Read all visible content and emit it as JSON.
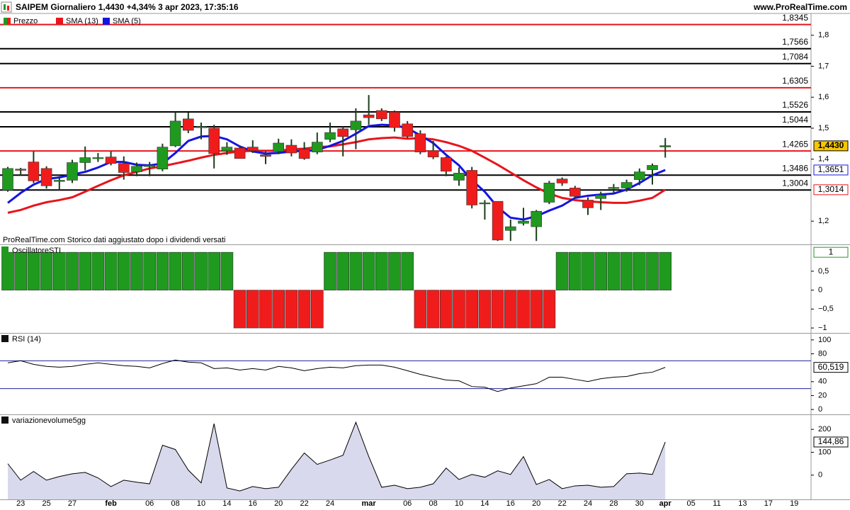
{
  "chart_data": [
    {
      "type": "candlestick",
      "title": "SAIPEM Giornaliero 1,4430 +4,34% 3 apr 2023, 17:35:16",
      "source": "www.ProRealTime.com",
      "note": "ProRealTime.com Storico dati aggiustato dopo i dividendi versati",
      "categories": [
        null,
        "23",
        null,
        "25",
        null,
        "27",
        null,
        null,
        "feb",
        null,
        null,
        "06",
        null,
        "08",
        null,
        "10",
        null,
        "14",
        null,
        "16",
        null,
        "20",
        null,
        "22",
        null,
        "24",
        null,
        null,
        "mar",
        null,
        null,
        "06",
        null,
        "08",
        null,
        "10",
        null,
        "14",
        null,
        "16",
        null,
        "20",
        null,
        "22",
        null,
        "24",
        null,
        "28",
        null,
        "30",
        null,
        "apr",
        null,
        "05",
        null,
        "11",
        null,
        "13",
        null,
        "17",
        null,
        "19"
      ],
      "up_color": "#1f9a1f",
      "down_color": "#f01c1c",
      "series": [
        {
          "name": "Prezzo",
          "last_label": "1,4430",
          "last_label_fill": "#f7c600",
          "open": [
            1.3,
            1.368,
            1.391,
            1.37,
            1.328,
            1.332,
            1.389,
            1.404,
            1.407,
            1.386,
            1.359,
            1.376,
            1.368,
            1.443,
            1.53,
            1.503,
            1.5,
            1.427,
            1.436,
            1.439,
            1.414,
            1.425,
            1.445,
            1.432,
            1.423,
            1.464,
            1.498,
            1.495,
            1.543,
            1.557,
            1.552,
            1.514,
            1.482,
            1.427,
            1.405,
            1.332,
            1.364,
            1.257,
            1.264,
            1.17,
            1.193,
            1.182,
            1.261,
            1.336,
            1.307,
            1.268,
            1.273,
            1.305,
            1.307,
            1.334,
            1.366,
            1.441,
            null,
            null,
            null,
            null,
            null,
            null,
            null,
            null,
            null,
            null
          ],
          "high": [
            1.375,
            1.372,
            1.425,
            1.377,
            1.345,
            1.398,
            1.441,
            1.42,
            1.425,
            1.409,
            1.389,
            1.391,
            1.45,
            1.552,
            1.55,
            1.518,
            1.511,
            1.455,
            1.443,
            1.461,
            1.425,
            1.466,
            1.464,
            1.455,
            1.486,
            1.518,
            1.505,
            1.564,
            1.607,
            1.564,
            1.557,
            1.523,
            1.493,
            1.459,
            1.409,
            1.373,
            1.375,
            1.268,
            1.264,
            1.205,
            1.243,
            1.236,
            1.33,
            1.341,
            1.314,
            1.277,
            1.295,
            1.32,
            1.334,
            1.37,
            1.386,
            1.468,
            null,
            null,
            null,
            null,
            null,
            null,
            null,
            null,
            null,
            null
          ],
          "low": [
            1.295,
            1.346,
            1.323,
            1.305,
            1.3,
            1.323,
            1.364,
            1.391,
            1.38,
            1.334,
            1.345,
            1.345,
            1.361,
            1.439,
            1.484,
            1.464,
            1.37,
            1.414,
            1.402,
            1.42,
            1.384,
            1.416,
            1.409,
            1.398,
            1.416,
            1.455,
            1.409,
            1.432,
            1.511,
            1.523,
            1.489,
            1.468,
            1.416,
            1.4,
            1.345,
            1.314,
            1.241,
            1.205,
            1.136,
            1.136,
            1.186,
            1.136,
            1.255,
            1.314,
            1.273,
            1.22,
            1.236,
            1.291,
            1.295,
            1.316,
            1.318,
            1.405,
            null,
            null,
            null,
            null,
            null,
            null,
            null,
            null,
            null,
            null
          ],
          "close": [
            1.37,
            1.364,
            1.33,
            1.314,
            1.332,
            1.389,
            1.405,
            1.405,
            1.386,
            1.357,
            1.377,
            1.38,
            1.439,
            1.523,
            1.493,
            1.505,
            1.418,
            1.439,
            1.402,
            1.427,
            1.409,
            1.452,
            1.42,
            1.402,
            1.455,
            1.486,
            1.473,
            1.523,
            1.534,
            1.53,
            1.502,
            1.473,
            1.423,
            1.407,
            1.361,
            1.355,
            1.252,
            1.259,
            1.139,
            1.182,
            1.2,
            1.232,
            1.323,
            1.323,
            1.28,
            1.243,
            1.284,
            1.309,
            1.325,
            1.359,
            1.38,
            1.443,
            null,
            null,
            null,
            null,
            null,
            null,
            null,
            null,
            null,
            null
          ]
        },
        {
          "name": "SMA (13)",
          "color": "#e8141c",
          "last_label": "1,3014",
          "values": [
            1.227,
            1.236,
            1.25,
            1.261,
            1.268,
            1.277,
            1.295,
            1.314,
            1.332,
            1.348,
            1.359,
            1.37,
            1.377,
            1.386,
            1.395,
            1.405,
            1.414,
            1.42,
            1.425,
            1.427,
            1.427,
            1.427,
            1.432,
            1.434,
            1.439,
            1.441,
            1.448,
            1.455,
            1.464,
            1.468,
            1.47,
            1.466,
            1.468,
            1.464,
            1.455,
            1.443,
            1.427,
            1.405,
            1.382,
            1.357,
            1.332,
            1.309,
            1.289,
            1.275,
            1.268,
            1.264,
            1.261,
            1.259,
            1.259,
            1.266,
            1.275,
            1.3014,
            null,
            null,
            null,
            null,
            null,
            null,
            null,
            null,
            null,
            null
          ]
        },
        {
          "name": "SMA (5)",
          "color": "#1414e0",
          "last_label": "1,3651",
          "values": [
            1.259,
            1.291,
            1.318,
            1.336,
            1.341,
            1.35,
            1.359,
            1.373,
            1.391,
            1.391,
            1.382,
            1.38,
            1.386,
            1.42,
            1.459,
            1.473,
            1.475,
            1.464,
            1.441,
            1.425,
            1.418,
            1.42,
            1.425,
            1.427,
            1.43,
            1.443,
            1.459,
            1.482,
            1.507,
            1.511,
            1.509,
            1.5,
            1.477,
            1.452,
            1.414,
            1.38,
            1.332,
            1.295,
            1.245,
            1.211,
            1.205,
            1.216,
            1.234,
            1.25,
            1.275,
            1.282,
            1.286,
            1.289,
            1.302,
            1.323,
            1.348,
            1.3651,
            null,
            null,
            null,
            null,
            null,
            null,
            null,
            null,
            null,
            null
          ]
        }
      ],
      "levels": [
        {
          "value": 1.8345,
          "label": "1,8345",
          "color": "#e8141c"
        },
        {
          "value": 1.7566,
          "label": "1,7566",
          "color": "#000000"
        },
        {
          "value": 1.7084,
          "label": "1,7084",
          "color": "#000000"
        },
        {
          "value": 1.6305,
          "label": "1,6305",
          "color": "#e8141c"
        },
        {
          "value": 1.5526,
          "label": "1,5526",
          "color": "#000000"
        },
        {
          "value": 1.5044,
          "label": "1,5044",
          "color": "#000000"
        },
        {
          "value": 1.4265,
          "label": "1,4265",
          "color": "#e8141c"
        },
        {
          "value": 1.3486,
          "label": "1,3486",
          "color": "#000000"
        },
        {
          "value": 1.3004,
          "label": "1,3004",
          "color": "#000000"
        }
      ],
      "ylim": [
        1.125,
        1.868
      ],
      "yticks": [
        {
          "value": 1.8,
          "label": "1,8"
        },
        {
          "value": 1.7,
          "label": "1,7"
        },
        {
          "value": 1.6,
          "label": "1,6"
        },
        {
          "value": 1.5,
          "label": "1,5"
        },
        {
          "value": 1.4,
          "label": "1,4"
        },
        {
          "value": 1.2,
          "label": "1,2"
        }
      ]
    },
    {
      "type": "bar",
      "title": "OscillatoreSTI",
      "up_color": "#1f9a1f",
      "down_color": "#f01c1c",
      "last_label": "1",
      "values": [
        1,
        1,
        1,
        1,
        1,
        1,
        1,
        1,
        1,
        1,
        1,
        1,
        1,
        1,
        1,
        1,
        1,
        1,
        -1,
        -1,
        -1,
        -1,
        -1,
        -1,
        -1,
        1,
        1,
        1,
        1,
        1,
        1,
        1,
        -1,
        -1,
        -1,
        -1,
        -1,
        -1,
        -1,
        -1,
        -1,
        -1,
        -1,
        1,
        1,
        1,
        1,
        1,
        1,
        1,
        1,
        1
      ],
      "ylim": [
        -1.13,
        1.19
      ],
      "yticks": [
        {
          "value": 0.5,
          "label": "0,5"
        },
        0,
        {
          "value": -0.5,
          "label": "−0,5"
        },
        {
          "value": -1,
          "label": "−1"
        }
      ]
    },
    {
      "type": "line",
      "title": "RSI (14)",
      "color": "#000000",
      "last_label": "60,519",
      "levels": [
        70,
        30
      ],
      "level_color": "#2020a0",
      "values": [
        67.0,
        70.1,
        64.9,
        61.9,
        60.8,
        61.9,
        64.9,
        67.0,
        64.9,
        62.9,
        61.9,
        59.8,
        66.0,
        71.1,
        68.0,
        67.0,
        58.8,
        59.8,
        56.7,
        58.8,
        56.7,
        61.9,
        59.8,
        55.7,
        58.8,
        60.8,
        59.8,
        62.9,
        63.9,
        63.9,
        60.8,
        55.7,
        50.5,
        46.4,
        42.3,
        41.2,
        33.0,
        32.0,
        25.8,
        30.9,
        34.0,
        37.1,
        46.4,
        46.4,
        43.3,
        40.2,
        44.3,
        46.4,
        47.4,
        51.5,
        53.6,
        60.519
      ],
      "ylim": [
        -7,
        109
      ],
      "yticks": [
        100,
        80,
        40,
        20,
        0
      ]
    },
    {
      "type": "area",
      "title": "variazionevolume5gg",
      "color": "#000000",
      "fill": "#d9d9ee",
      "last_label": "144,86",
      "values": [
        50,
        -22,
        16,
        -22,
        -6,
        6,
        12,
        -12,
        -50,
        -22,
        -31,
        -38,
        131,
        112,
        22,
        -34,
        225,
        -56,
        -69,
        -50,
        -59,
        -53,
        25,
        97,
        47,
        66,
        87,
        231,
        81,
        -53,
        -44,
        -59,
        -53,
        -38,
        31,
        -19,
        3,
        -9,
        19,
        3,
        81,
        -41,
        -19,
        -59,
        -47,
        -44,
        -53,
        -50,
        6,
        9,
        3,
        144.86
      ],
      "ylim": [
        -106,
        262.5
      ],
      "yticks": [
        200,
        100,
        0
      ]
    }
  ]
}
